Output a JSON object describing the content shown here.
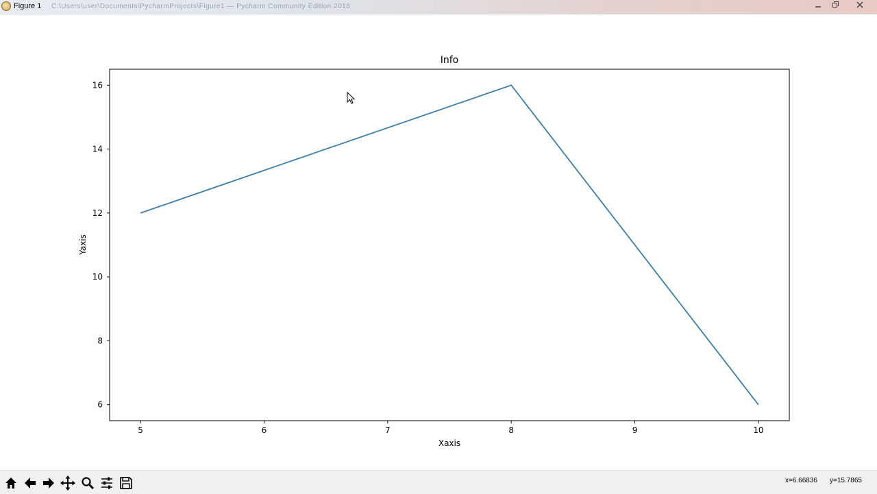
{
  "window": {
    "title": "Figure 1",
    "path": "C:\\Users\\user\\Documents\\PycharmProjects\\Figure1 — Pycharm Community Edition 2018",
    "minimize_icon": "minimize-icon",
    "restore_icon": "restore-icon",
    "close_icon": "close-icon"
  },
  "chart_data": {
    "type": "line",
    "title": "Info",
    "xlabel": "Xaxis",
    "ylabel": "Yaxis",
    "x": [
      5,
      8,
      10
    ],
    "series": [
      {
        "values": [
          12,
          16,
          6
        ],
        "color": "#3b7dab"
      }
    ],
    "xticks": [
      5,
      6,
      7,
      8,
      9,
      10
    ],
    "yticks": [
      6,
      8,
      10,
      12,
      14,
      16
    ],
    "xlim": [
      4.75,
      10.25
    ],
    "ylim": [
      5.5,
      16.5
    ],
    "grid": false
  },
  "toolbar": {
    "tools": [
      {
        "name": "home-icon"
      },
      {
        "name": "back-icon"
      },
      {
        "name": "forward-icon"
      },
      {
        "name": "pan-icon"
      },
      {
        "name": "zoom-icon"
      },
      {
        "name": "configure-subplots-icon"
      },
      {
        "name": "save-icon"
      }
    ],
    "coord_x": "x=6.66836",
    "coord_y": "y=15.7865"
  }
}
